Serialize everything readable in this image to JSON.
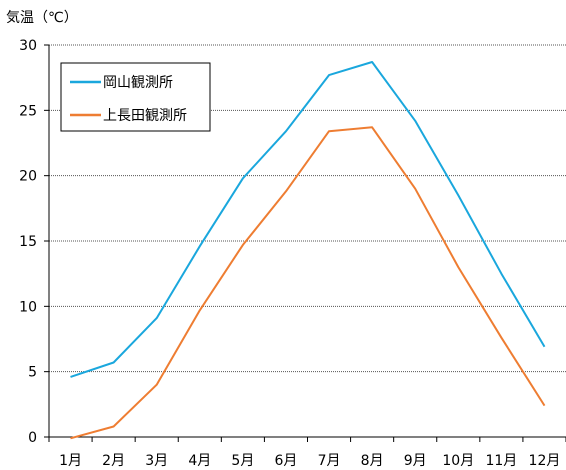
{
  "chart_data": {
    "type": "line",
    "ylabel": "気温（℃）",
    "categories": [
      "1月",
      "2月",
      "3月",
      "4月",
      "5月",
      "6月",
      "7月",
      "8月",
      "9月",
      "10月",
      "11月",
      "12月"
    ],
    "yticks": [
      0,
      5,
      10,
      15,
      20,
      25,
      30
    ],
    "ylim": [
      0,
      30
    ],
    "grid": true,
    "legend": "top-left",
    "series": [
      {
        "name": "岡山観測所",
        "color": "#1aa7dd",
        "values": [
          4.6,
          5.7,
          9.1,
          14.6,
          19.8,
          23.4,
          27.7,
          28.7,
          24.2,
          18.5,
          12.5,
          6.9
        ]
      },
      {
        "name": "上長田観測所",
        "color": "#ee7d32",
        "values": [
          -0.1,
          0.8,
          4.0,
          9.7,
          14.7,
          18.8,
          23.4,
          23.7,
          19.0,
          13.0,
          7.6,
          2.4
        ]
      }
    ]
  }
}
